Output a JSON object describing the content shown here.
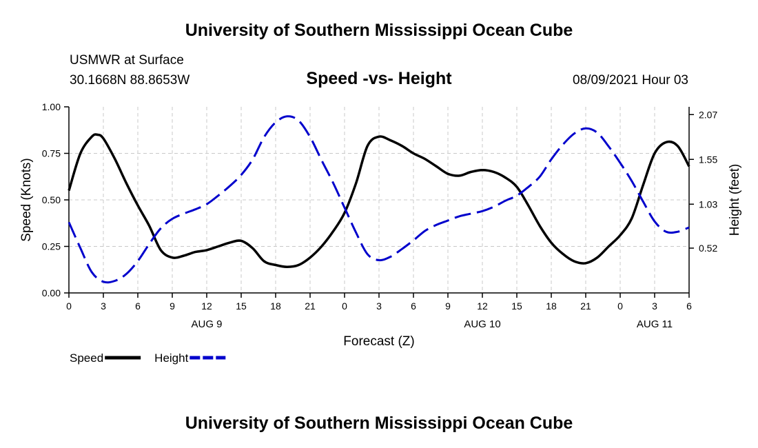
{
  "header": {
    "title": "University of Southern Mississippi Ocean Cube",
    "station": "USMWR at Surface",
    "coords": "30.1668N  88.8653W",
    "subtitle": "Speed -vs- Height",
    "datetime": "08/09/2021 Hour 03"
  },
  "footer": {
    "title": "University of Southern Mississippi Ocean Cube"
  },
  "chart_data": {
    "type": "line",
    "xlabel": "Forecast (Z)",
    "ylabel_left": "Speed (Knots)",
    "ylabel_right": "Height (feet)",
    "x_hours_range": [
      0,
      54
    ],
    "x_tick_labels": [
      "0",
      "3",
      "6",
      "9",
      "12",
      "15",
      "18",
      "21",
      "0",
      "3",
      "6",
      "9",
      "12",
      "15",
      "18",
      "21",
      "0",
      "3",
      "6"
    ],
    "day_labels": [
      {
        "label": "AUG 9",
        "hour": 12
      },
      {
        "label": "AUG 10",
        "hour": 36
      },
      {
        "label": "AUG 11",
        "hour": 51
      }
    ],
    "ylim_left": [
      0,
      1
    ],
    "yticks_left": [
      "0.00",
      "0.25",
      "0.50",
      "0.75",
      "1.00"
    ],
    "ylim_right": [
      0.0,
      2.16
    ],
    "yticks_right": [
      {
        "value": 0.52,
        "label": "0.52"
      },
      {
        "value": 1.03,
        "label": "1.03"
      },
      {
        "value": 1.55,
        "label": "1.55"
      },
      {
        "value": 2.07,
        "label": "2.07"
      }
    ],
    "grid": true,
    "legend": [
      {
        "label": "Speed",
        "color": "#000000",
        "style": "solid"
      },
      {
        "label": "Height",
        "color": "#0000cc",
        "style": "dashed"
      }
    ],
    "series": [
      {
        "name": "Speed",
        "axis": "left",
        "color": "#000000",
        "style": "solid",
        "x": [
          0,
          1,
          2,
          2.5,
          3,
          4,
          5,
          6,
          7,
          8,
          9,
          10,
          11,
          12,
          13,
          14,
          15,
          16,
          17,
          18,
          19,
          20,
          21,
          22,
          23,
          24,
          25,
          26,
          27,
          28,
          29,
          30,
          31,
          32,
          33,
          34,
          35,
          36,
          37,
          38,
          39,
          40,
          41,
          42,
          43,
          44,
          45,
          46,
          47,
          48,
          49,
          50,
          51,
          52,
          53,
          54
        ],
        "values": [
          0.55,
          0.75,
          0.84,
          0.85,
          0.83,
          0.72,
          0.59,
          0.47,
          0.36,
          0.23,
          0.19,
          0.2,
          0.22,
          0.23,
          0.25,
          0.27,
          0.28,
          0.24,
          0.17,
          0.15,
          0.14,
          0.15,
          0.19,
          0.25,
          0.33,
          0.43,
          0.59,
          0.79,
          0.84,
          0.82,
          0.79,
          0.75,
          0.72,
          0.68,
          0.64,
          0.63,
          0.65,
          0.66,
          0.65,
          0.62,
          0.57,
          0.47,
          0.36,
          0.27,
          0.21,
          0.17,
          0.16,
          0.19,
          0.25,
          0.31,
          0.4,
          0.58,
          0.75,
          0.81,
          0.79,
          0.68
        ]
      },
      {
        "name": "Height",
        "axis": "right",
        "color": "#0000cc",
        "style": "dashed",
        "x": [
          0,
          1,
          2,
          3,
          4,
          5,
          6,
          7,
          8,
          9,
          10,
          11,
          12,
          13,
          14,
          15,
          16,
          17,
          18,
          19,
          20,
          21,
          22,
          23,
          24,
          25,
          26,
          27,
          28,
          29,
          30,
          31,
          32,
          33,
          34,
          35,
          36,
          37,
          38,
          39,
          40,
          41,
          42,
          43,
          44,
          45,
          46,
          47,
          48,
          49,
          50,
          51,
          52,
          53,
          54
        ],
        "values": [
          0.82,
          0.52,
          0.24,
          0.13,
          0.14,
          0.22,
          0.37,
          0.57,
          0.75,
          0.86,
          0.92,
          0.97,
          1.03,
          1.13,
          1.24,
          1.37,
          1.55,
          1.81,
          1.98,
          2.05,
          2.0,
          1.81,
          1.54,
          1.28,
          0.99,
          0.7,
          0.45,
          0.38,
          0.42,
          0.51,
          0.61,
          0.72,
          0.79,
          0.84,
          0.89,
          0.92,
          0.95,
          1.0,
          1.07,
          1.13,
          1.23,
          1.35,
          1.55,
          1.72,
          1.85,
          1.91,
          1.86,
          1.7,
          1.51,
          1.3,
          1.06,
          0.83,
          0.71,
          0.71,
          0.76
        ]
      }
    ]
  }
}
